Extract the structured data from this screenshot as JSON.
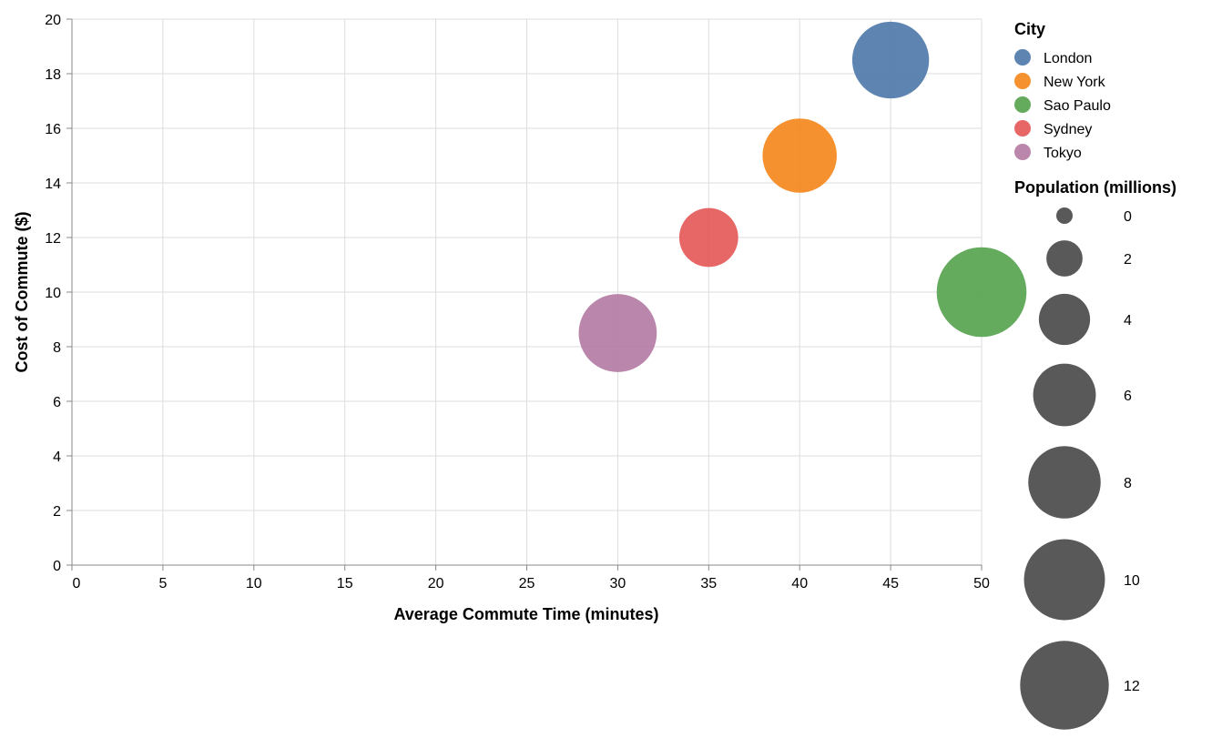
{
  "chart_data": {
    "type": "scatter",
    "subtype": "bubble",
    "xlabel": "Average Commute Time (minutes)",
    "ylabel": "Cost of Commute ($)",
    "xlim": [
      0,
      50
    ],
    "ylim": [
      0,
      20
    ],
    "x_ticks": [
      0,
      5,
      10,
      15,
      20,
      25,
      30,
      35,
      40,
      45,
      50
    ],
    "y_ticks": [
      0,
      2,
      4,
      6,
      8,
      10,
      12,
      14,
      16,
      18,
      20
    ],
    "grid": true,
    "points": [
      {
        "city": "London",
        "x": 45,
        "y": 18.5,
        "population": 9.0,
        "color": "#4c78a8"
      },
      {
        "city": "New York",
        "x": 40,
        "y": 15,
        "population": 8.4,
        "color": "#f58518"
      },
      {
        "city": "Sao Paulo",
        "x": 50,
        "y": 10,
        "population": 12.3,
        "color": "#54a24b"
      },
      {
        "city": "Sydney",
        "x": 35,
        "y": 12,
        "population": 5.3,
        "color": "#e45756"
      },
      {
        "city": "Tokyo",
        "x": 30,
        "y": 8.5,
        "population": 9.3,
        "color": "#b279a2"
      }
    ],
    "color_legend": {
      "title": "City",
      "placement": "right",
      "entries": [
        {
          "label": "London",
          "color": "#4c78a8"
        },
        {
          "label": "New York",
          "color": "#f58518"
        },
        {
          "label": "Sao Paulo",
          "color": "#54a24b"
        },
        {
          "label": "Sydney",
          "color": "#e45756"
        },
        {
          "label": "Tokyo",
          "color": "#b279a2"
        }
      ]
    },
    "size_legend": {
      "title": "Population (millions)",
      "placement": "right",
      "values": [
        0,
        2,
        4,
        6,
        8,
        10,
        12
      ],
      "color": "#595959"
    }
  }
}
